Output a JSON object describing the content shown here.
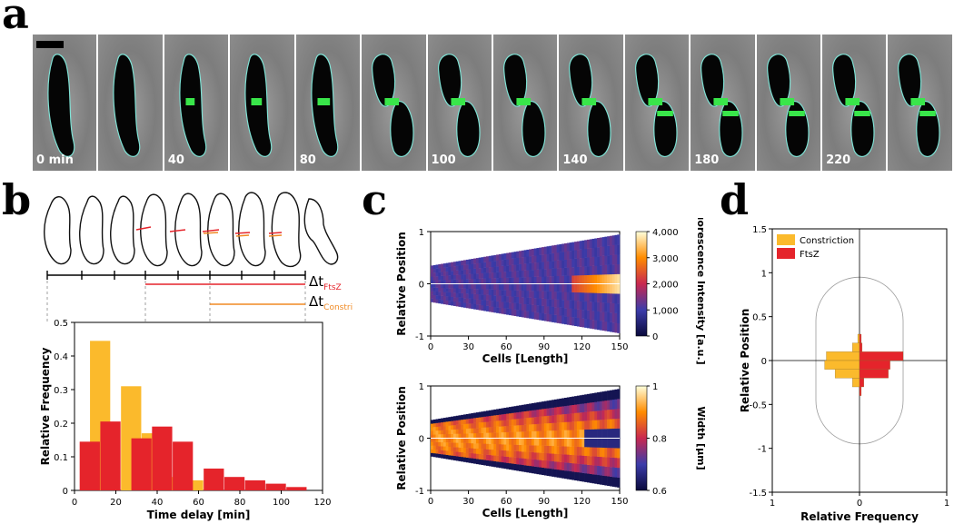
{
  "panels": {
    "a": "a",
    "b": "b",
    "c": "c",
    "d": "d"
  },
  "panel_a": {
    "frames": [
      "0 min",
      "",
      "40",
      "",
      "80",
      "",
      "100",
      "",
      "140",
      "",
      "180",
      "",
      "220",
      ""
    ]
  },
  "panel_b": {
    "delta_t": "Δt",
    "sub_ftsz": "FtsZ",
    "sub_constriction": "Constriction"
  },
  "colors": {
    "yellow": "#FBBA2C",
    "red": "#E5242B",
    "orange": "#F08A24"
  },
  "chart_data": [
    {
      "id": "b-histogram",
      "type": "bar",
      "xlabel": "Time delay [min]",
      "ylabel": "Relative Frequency",
      "xlim": [
        0,
        120
      ],
      "ylim": [
        0,
        0.5
      ],
      "xticks": [
        "0",
        "20",
        "40",
        "60",
        "80",
        "100",
        "120"
      ],
      "yticks": [
        "0",
        "0.1",
        "0.2",
        "0.3",
        "0.4",
        "0.5"
      ],
      "bin_width": 5,
      "series": [
        {
          "name": "Constriction",
          "color": "#FBBA2C",
          "x": [
            12.5,
            27.5,
            37.5,
            47.5,
            57.5
          ],
          "values": [
            0.445,
            0.31,
            0.17,
            0.04,
            0.03
          ]
        },
        {
          "name": "FtsZ",
          "color": "#E5242B",
          "x": [
            7.5,
            17.5,
            32.5,
            42.5,
            52.5,
            67.5,
            77.5,
            87.5,
            97.5,
            107.5
          ],
          "values": [
            0.145,
            0.205,
            0.155,
            0.19,
            0.145,
            0.065,
            0.04,
            0.03,
            0.02,
            0.01
          ]
        }
      ]
    },
    {
      "id": "c-top-demograph",
      "type": "heatmap",
      "xlabel": "Cells [Length]",
      "ylabel": "Relative Position",
      "xlim": [
        0,
        150
      ],
      "ylim": [
        -1,
        1
      ],
      "xticks": [
        "0",
        "30",
        "60",
        "90",
        "120",
        "150"
      ],
      "yticks": [
        "1",
        "0",
        "-1"
      ],
      "colorbar_label": "Fluorescence Intensity [a.u.]",
      "colorbar_ticks": [
        "4,000",
        "3,000",
        "2,000",
        "1,000",
        "0"
      ],
      "colorbar_range": [
        0,
        4000
      ]
    },
    {
      "id": "c-bottom-demograph",
      "type": "heatmap",
      "xlabel": "Cells [Length]",
      "ylabel": "Relative Position",
      "xlim": [
        0,
        150
      ],
      "ylim": [
        -1,
        1
      ],
      "xticks": [
        "0",
        "30",
        "60",
        "90",
        "120",
        "150"
      ],
      "yticks": [
        "1",
        "0",
        "-1"
      ],
      "colorbar_label": "Width [µm]",
      "colorbar_ticks": [
        "1",
        "0.8",
        "0.6"
      ],
      "colorbar_range": [
        0.6,
        1.0
      ]
    },
    {
      "id": "d-histogram",
      "type": "bar",
      "orientation": "horizontal-mirrored",
      "xlabel": "Relative Frequency",
      "ylabel": "Relative Position",
      "xticks": [
        "1",
        "0",
        "1"
      ],
      "yticks": [
        "1.5",
        "1",
        "0.5",
        "0",
        "-0.5",
        "-1",
        "-1.5"
      ],
      "ylim": [
        -1.5,
        1.5
      ],
      "xlim": [
        -1,
        1
      ],
      "legend": [
        "Constriction",
        "FtsZ"
      ],
      "series": [
        {
          "name": "Constriction",
          "color": "#FBBA2C",
          "side": "left",
          "y": [
            0.25,
            0.15,
            0.05,
            -0.05,
            -0.15,
            -0.25
          ],
          "values": [
            0.02,
            0.08,
            0.38,
            0.4,
            0.28,
            0.08
          ]
        },
        {
          "name": "FtsZ",
          "color": "#E5242B",
          "side": "right",
          "y": [
            0.25,
            0.15,
            0.05,
            -0.05,
            -0.15,
            -0.25,
            -0.35
          ],
          "values": [
            0.02,
            0.03,
            0.5,
            0.35,
            0.33,
            0.05,
            0.02
          ]
        }
      ]
    }
  ]
}
